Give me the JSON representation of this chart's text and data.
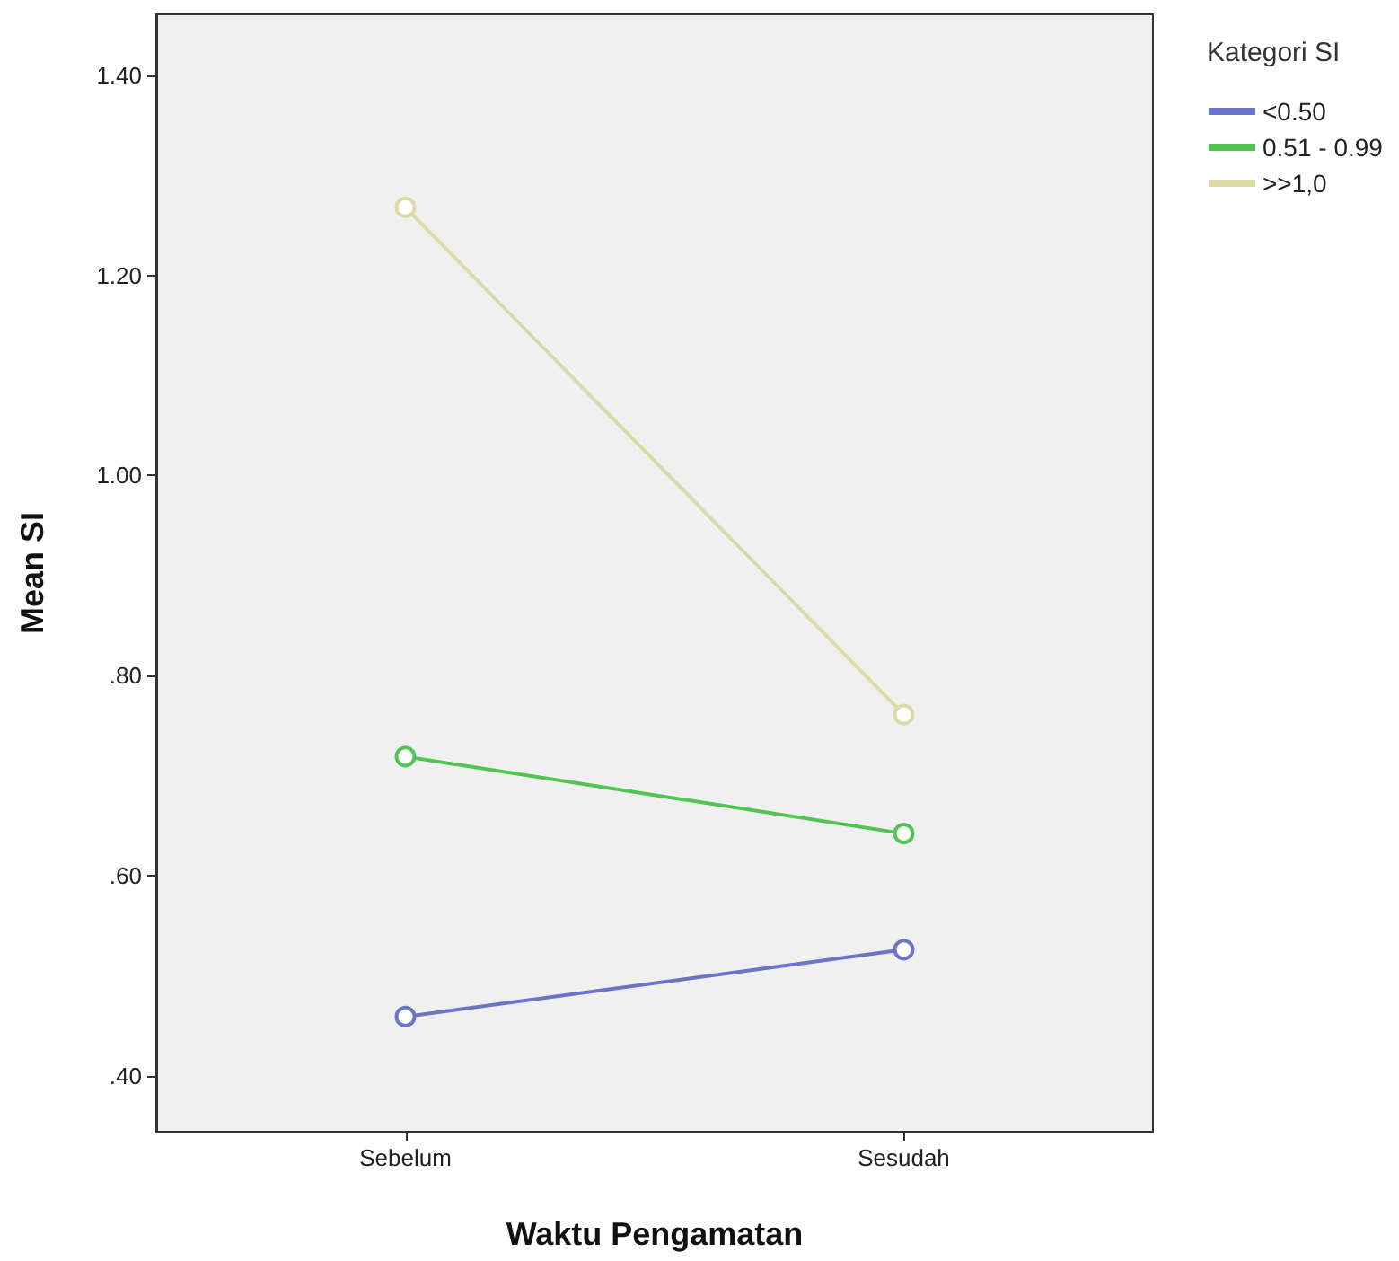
{
  "chart_data": {
    "type": "line",
    "xlabel": "Waktu Pengamatan",
    "ylabel": "Mean SI",
    "legend_title": "Kategori SI",
    "categories": [
      "Sebelum",
      "Sesudah"
    ],
    "series": [
      {
        "name": "<0.50",
        "color": "#6a74c8",
        "values": [
          0.459,
          0.526
        ]
      },
      {
        "name": "0.51 - 0.99",
        "color": "#52c452",
        "values": [
          0.719,
          0.642
        ]
      },
      {
        "name": ">>1,0",
        "color": "#dedaa8",
        "values": [
          1.268,
          0.761
        ]
      }
    ],
    "ylim": [
      0.344,
      1.461
    ],
    "yticks": [
      {
        "value": 0.4,
        "label": ".40"
      },
      {
        "value": 0.6,
        "label": ".60"
      },
      {
        "value": 0.8,
        "label": ".80"
      },
      {
        "value": 1.0,
        "label": "1.00"
      },
      {
        "value": 1.2,
        "label": "1.20"
      },
      {
        "value": 1.4,
        "label": "1.40"
      }
    ],
    "marker": "circle",
    "grid": false,
    "legend": "top right"
  }
}
